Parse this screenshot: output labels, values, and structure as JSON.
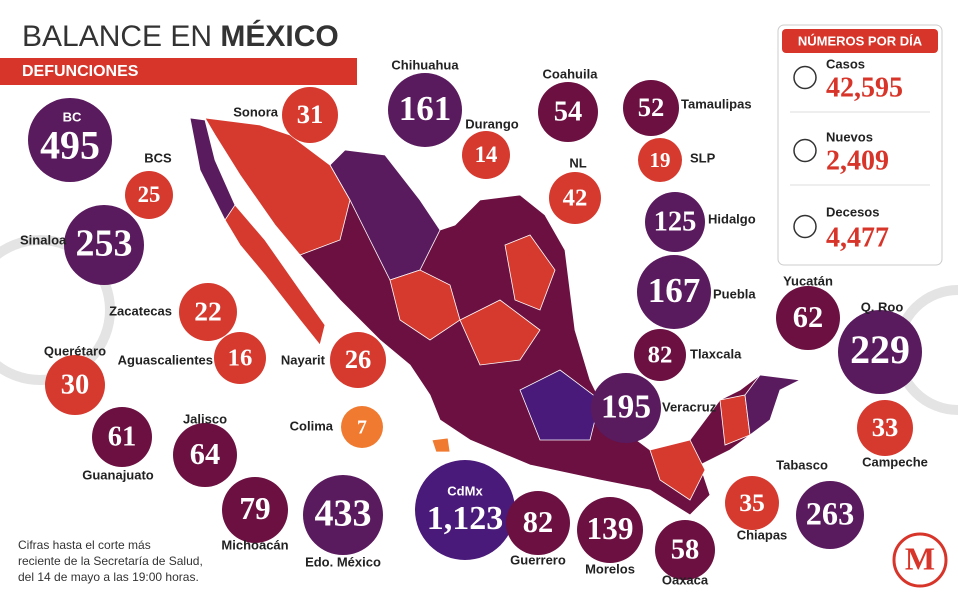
{
  "header": {
    "title": "BALANCE EN ",
    "title_bold": "MÉXICO",
    "subtitle": "DEFUNCIONES"
  },
  "states": [
    {
      "name": "BC",
      "value": "495"
    },
    {
      "name": "Sonora",
      "value": "31"
    },
    {
      "name": "Chihuahua",
      "value": "161"
    },
    {
      "name": "Durango",
      "value": "14"
    },
    {
      "name": "Coahuila",
      "value": "54"
    },
    {
      "name": "Tamaulipas",
      "value": "52"
    },
    {
      "name": "NL",
      "value": "42"
    },
    {
      "name": "SLP",
      "value": "19"
    },
    {
      "name": "BCS",
      "value": "25"
    },
    {
      "name": "Hidalgo",
      "value": "125"
    },
    {
      "name": "Sinaloa",
      "value": "253"
    },
    {
      "name": "Puebla",
      "value": "167"
    },
    {
      "name": "Zacatecas",
      "value": "22"
    },
    {
      "name": "Yucatán",
      "value": "62"
    },
    {
      "name": "Q. Roo",
      "value": "229"
    },
    {
      "name": "Aguascalientes",
      "value": "16"
    },
    {
      "name": "Nayarit",
      "value": "26"
    },
    {
      "name": "Tlaxcala",
      "value": "82"
    },
    {
      "name": "Querétaro",
      "value": "30"
    },
    {
      "name": "Veracruz",
      "value": "195"
    },
    {
      "name": "Campeche",
      "value": "33"
    },
    {
      "name": "Guanajuato",
      "value": "61"
    },
    {
      "name": "Jalisco",
      "value": "64"
    },
    {
      "name": "Colima",
      "value": "7"
    },
    {
      "name": "Tabasco",
      "value": "263"
    },
    {
      "name": "Michoacán",
      "value": "79"
    },
    {
      "name": "Edo. México",
      "value": "433"
    },
    {
      "name": "CdMx",
      "value": "1,123"
    },
    {
      "name": "Guerrero",
      "value": "82"
    },
    {
      "name": "Morelos",
      "value": "139"
    },
    {
      "name": "Oaxaca",
      "value": "58"
    },
    {
      "name": "Chiapas",
      "value": "35"
    }
  ],
  "panel": {
    "title": "NÚMEROS POR DÍA",
    "items": [
      {
        "label": "Casos",
        "value": "42,595"
      },
      {
        "label": "Nuevos",
        "value": "2,409"
      },
      {
        "label": "Decesos",
        "value": "4,477"
      }
    ]
  },
  "footnote": [
    "Cifras hasta el corte más",
    "reciente de la Secretaría de Salud,",
    "del 14 de mayo a las 19:00 horas."
  ],
  "logo": "M"
}
